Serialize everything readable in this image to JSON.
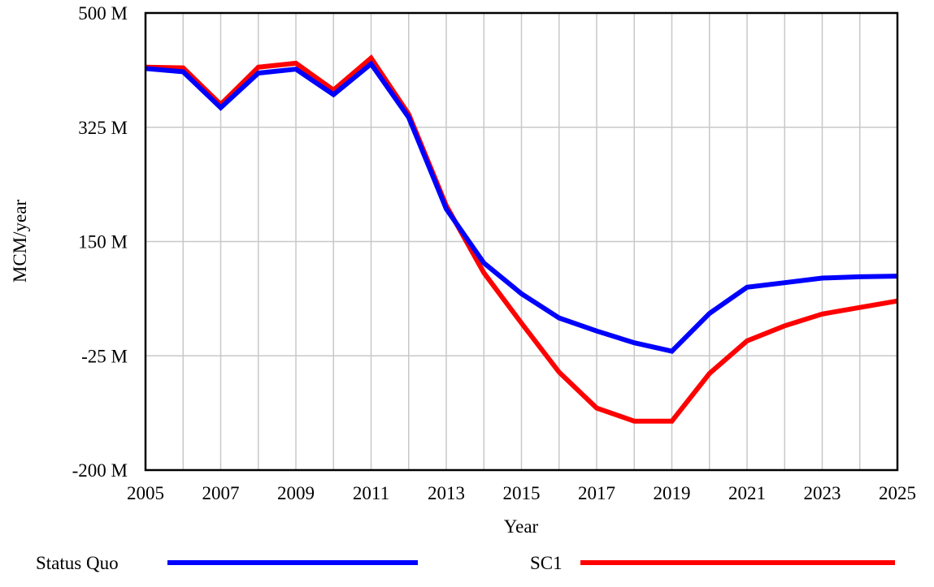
{
  "chart_data": {
    "type": "line",
    "title": "",
    "xlabel": "Year",
    "ylabel": "MCM/year",
    "xlim": [
      2005,
      2025
    ],
    "ylim": [
      -200,
      500
    ],
    "x_ticks": [
      2005,
      2007,
      2009,
      2011,
      2013,
      2015,
      2017,
      2019,
      2021,
      2023,
      2025
    ],
    "x_tick_labels": [
      "2005",
      "2007",
      "2009",
      "2011",
      "2013",
      "2015",
      "2017",
      "2019",
      "2021",
      "2023",
      "2025"
    ],
    "y_ticks": [
      500,
      325,
      150,
      -25,
      -200
    ],
    "y_tick_labels": [
      "500 M",
      "325 M",
      "150 M",
      "-25 M",
      "-200 M"
    ],
    "x_gridlines_every": 1,
    "grid": true,
    "legend_position": "bottom",
    "x": [
      2005,
      2006,
      2007,
      2008,
      2009,
      2010,
      2011,
      2012,
      2013,
      2014,
      2015,
      2016,
      2017,
      2018,
      2019,
      2020,
      2021,
      2022,
      2023,
      2024,
      2025
    ],
    "series": [
      {
        "name": "Status Quo",
        "color": "#0000ff",
        "values": [
          415,
          410,
          355,
          408,
          414,
          375,
          422,
          340,
          200,
          117,
          70,
          33,
          13,
          -5,
          -18,
          40,
          80,
          87,
          94,
          96,
          97
        ]
      },
      {
        "name": "SC1",
        "color": "#ff0000",
        "values": [
          417,
          416,
          360,
          417,
          423,
          382,
          431,
          345,
          205,
          102,
          25,
          -50,
          -105,
          -125,
          -125,
          -52,
          -2,
          21,
          39,
          49,
          59
        ]
      }
    ]
  }
}
